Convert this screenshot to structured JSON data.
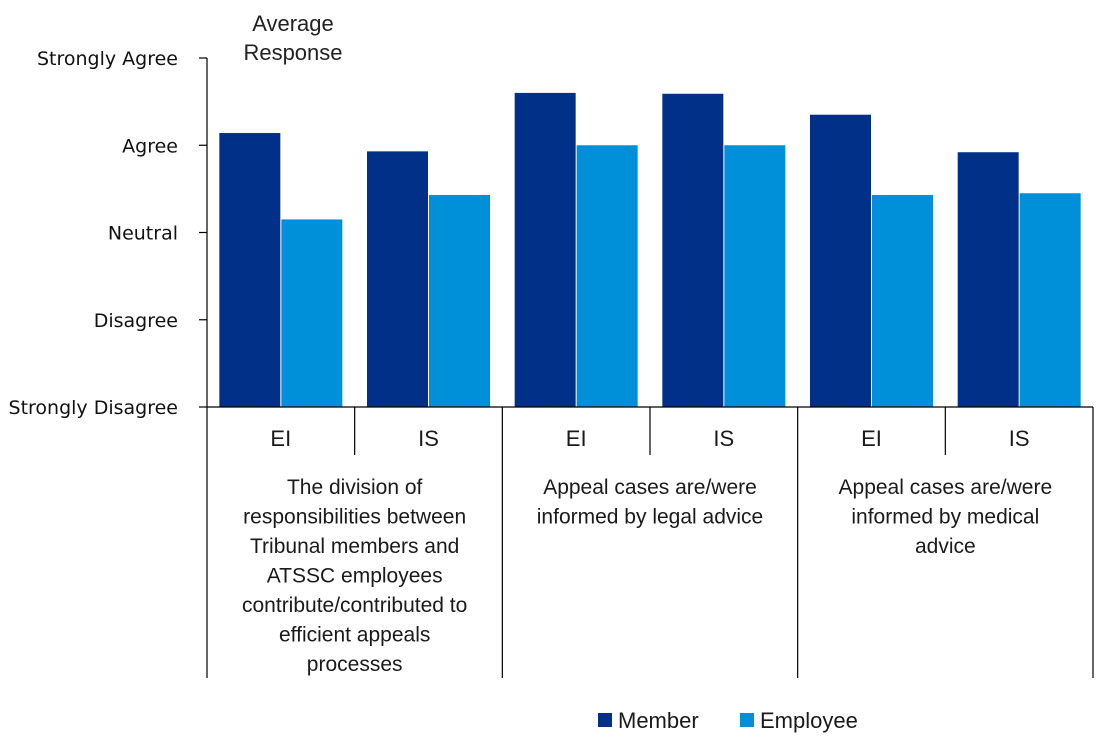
{
  "chart_data": {
    "type": "bar",
    "title": "Average Response",
    "xlabel": "",
    "ylabel": "",
    "y_scale": {
      "min": 1,
      "max": 5,
      "tick_values": [
        1,
        2,
        3,
        4,
        5
      ],
      "tick_labels": [
        "Strongly Disagree",
        "Disagree",
        "Neutral",
        "Agree",
        "Strongly Agree"
      ]
    },
    "ylim": [
      1,
      5
    ],
    "grid": false,
    "groups": [
      {
        "label": "The division of responsibilities between Tribunal members and ATSSC employees contribute/contributed to efficient appeals processes",
        "label_lines": [
          "The division of",
          "responsibilities between",
          "Tribunal members and",
          "ATSSC employees",
          "contribute/contributed to",
          "efficient appeals",
          "processes"
        ],
        "subcategories": [
          "EI",
          "IS"
        ]
      },
      {
        "label": "Appeal cases are/were informed by legal advice",
        "label_lines": [
          "Appeal cases are/were",
          "informed by legal advice"
        ],
        "subcategories": [
          "EI",
          "IS"
        ]
      },
      {
        "label": "Appeal cases are/were informed by medical advice",
        "label_lines": [
          "Appeal cases are/were",
          "informed by medical",
          "advice"
        ],
        "subcategories": [
          "EI",
          "IS"
        ]
      }
    ],
    "categories": [
      "EI",
      "IS",
      "EI",
      "IS",
      "EI",
      "IS"
    ],
    "series": [
      {
        "name": "Member",
        "color": "#003087",
        "values": [
          4.14,
          3.93,
          4.6,
          4.59,
          4.35,
          3.92
        ]
      },
      {
        "name": "Employee",
        "color": "#0090DA",
        "values": [
          3.15,
          3.43,
          4.0,
          4.0,
          3.43,
          3.45
        ]
      }
    ],
    "legend": {
      "position": "bottom-right",
      "entries": [
        "Member",
        "Employee"
      ]
    }
  }
}
